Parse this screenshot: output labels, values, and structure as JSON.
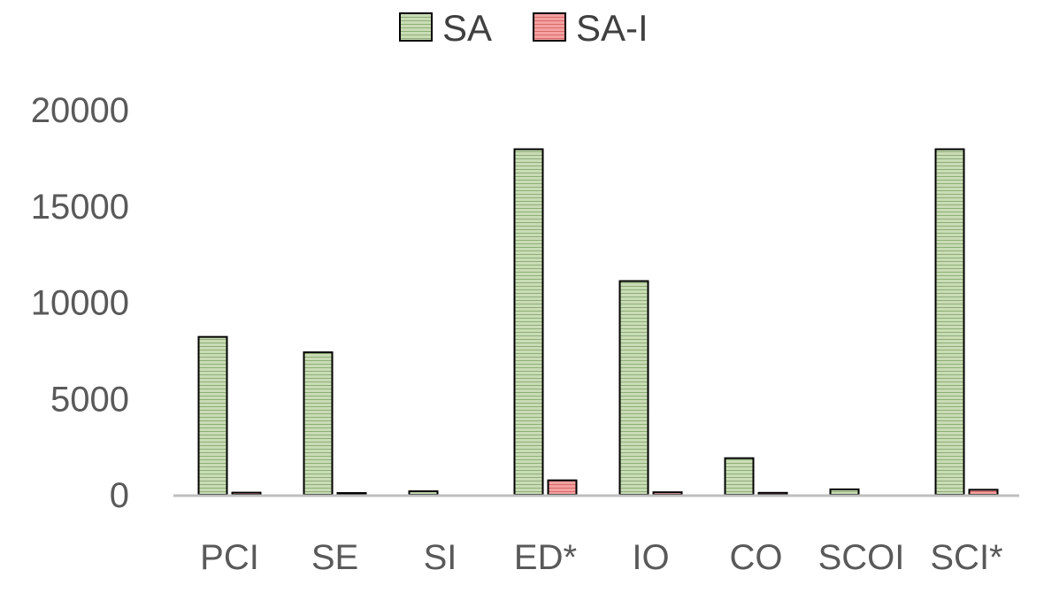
{
  "chart_data": {
    "type": "bar",
    "categories": [
      "PCI",
      "SE",
      "SI",
      "ED*",
      "IO",
      "CO",
      "SCOI",
      "SCI*"
    ],
    "series": [
      {
        "name": "SA",
        "color": "#c9dcb5",
        "values": [
          8200,
          7400,
          180,
          17950,
          11100,
          1900,
          280,
          17950
        ]
      },
      {
        "name": "SA-I",
        "color": "#f4a0a0",
        "values": [
          110,
          90,
          0,
          750,
          130,
          100,
          0,
          260
        ]
      }
    ],
    "yticks": [
      0,
      5000,
      10000,
      15000,
      20000
    ],
    "ylim": [
      0,
      20000
    ],
    "title": "",
    "xlabel": "",
    "ylabel": "",
    "legend_position": "top",
    "grid": false
  }
}
